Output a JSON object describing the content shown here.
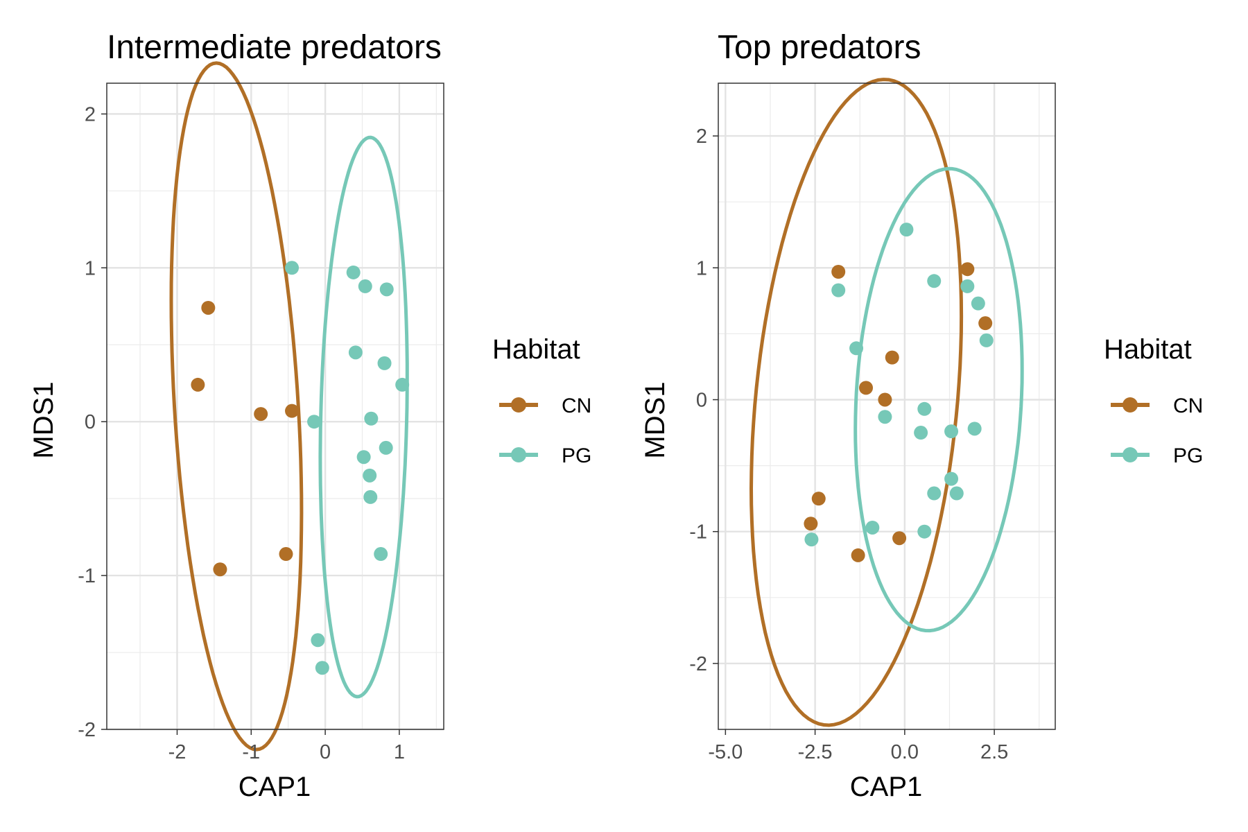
{
  "colors": {
    "CN": "#b16f26",
    "PG": "#76c8b7"
  },
  "chart_data": [
    {
      "type": "scatter",
      "title": "Intermediate predators",
      "xlabel": "CAP1",
      "ylabel": "MDS1",
      "xlim": [
        -2.95,
        1.6
      ],
      "ylim": [
        -2.0,
        2.2
      ],
      "xticks": [
        -2,
        -1,
        0,
        1
      ],
      "xtick_labels": [
        "-2",
        "-1",
        "0",
        "1"
      ],
      "yticks": [
        -2,
        -1,
        0,
        1,
        2
      ],
      "ytick_labels": [
        "-2",
        "-1",
        "0",
        "1",
        "2"
      ],
      "grid": true,
      "legend": {
        "title": "Habitat",
        "entries": [
          "CN",
          "PG"
        ],
        "position": "right"
      },
      "series": [
        {
          "name": "CN",
          "points": [
            [
              -1.58,
              0.74
            ],
            [
              -1.72,
              0.24
            ],
            [
              -0.87,
              0.05
            ],
            [
              -0.45,
              0.07
            ],
            [
              -1.42,
              -0.96
            ],
            [
              -0.53,
              -0.86
            ]
          ],
          "ellipse": {
            "cx": -1.2,
            "cy": 0.1,
            "rx": 0.83,
            "ry": 2.25,
            "tilt_deg": 8
          }
        },
        {
          "name": "PG",
          "points": [
            [
              -0.45,
              1.0
            ],
            [
              0.38,
              0.97
            ],
            [
              0.54,
              0.88
            ],
            [
              0.83,
              0.86
            ],
            [
              0.41,
              0.45
            ],
            [
              0.8,
              0.38
            ],
            [
              1.04,
              0.24
            ],
            [
              -0.15,
              0.0
            ],
            [
              0.62,
              0.02
            ],
            [
              0.52,
              -0.23
            ],
            [
              0.82,
              -0.17
            ],
            [
              0.6,
              -0.35
            ],
            [
              0.61,
              -0.49
            ],
            [
              0.75,
              -0.86
            ],
            [
              -0.1,
              -1.42
            ],
            [
              -0.04,
              -1.6
            ]
          ],
          "ellipse": {
            "cx": 0.52,
            "cy": 0.03,
            "rx": 0.58,
            "ry": 1.82,
            "tilt_deg": -3
          }
        }
      ]
    },
    {
      "type": "scatter",
      "title": "Top predators",
      "xlabel": "CAP1",
      "ylabel": "MDS1",
      "xlim": [
        -5.2,
        4.2
      ],
      "ylim": [
        -2.5,
        2.4
      ],
      "xticks": [
        -5.0,
        -2.5,
        0.0,
        2.5
      ],
      "xtick_labels": [
        "-5.0",
        "-2.5",
        "0.0",
        "2.5"
      ],
      "yticks": [
        -2,
        -1,
        0,
        1,
        2
      ],
      "ytick_labels": [
        "-2",
        "-1",
        "0",
        "1",
        "2"
      ],
      "grid": true,
      "legend": {
        "title": "Habitat",
        "entries": [
          "CN",
          "PG"
        ],
        "position": "right"
      },
      "series": [
        {
          "name": "CN",
          "points": [
            [
              -1.85,
              0.97
            ],
            [
              1.75,
              0.99
            ],
            [
              2.25,
              0.58
            ],
            [
              -0.35,
              0.32
            ],
            [
              -1.08,
              0.09
            ],
            [
              -0.55,
              0.0
            ],
            [
              -2.4,
              -0.75
            ],
            [
              -2.62,
              -0.94
            ],
            [
              -1.3,
              -1.18
            ],
            [
              -0.15,
              -1.05
            ]
          ],
          "ellipse": {
            "cx": -1.35,
            "cy": -0.02,
            "rx": 3.1,
            "ry": 2.23,
            "tilt_deg": 28
          }
        },
        {
          "name": "PG",
          "points": [
            [
              0.05,
              1.29
            ],
            [
              -1.85,
              0.83
            ],
            [
              0.82,
              0.9
            ],
            [
              1.75,
              0.86
            ],
            [
              2.05,
              0.73
            ],
            [
              2.28,
              0.45
            ],
            [
              -1.35,
              0.39
            ],
            [
              0.55,
              -0.07
            ],
            [
              -0.55,
              -0.13
            ],
            [
              0.45,
              -0.25
            ],
            [
              1.3,
              -0.24
            ],
            [
              1.95,
              -0.22
            ],
            [
              1.3,
              -0.6
            ],
            [
              0.82,
              -0.71
            ],
            [
              1.45,
              -0.71
            ],
            [
              -0.9,
              -0.97
            ],
            [
              0.55,
              -1.0
            ],
            [
              -2.6,
              -1.06
            ]
          ],
          "ellipse": {
            "cx": 0.95,
            "cy": 0.0,
            "rx": 2.35,
            "ry": 1.72,
            "tilt_deg": 12
          }
        }
      ]
    }
  ]
}
